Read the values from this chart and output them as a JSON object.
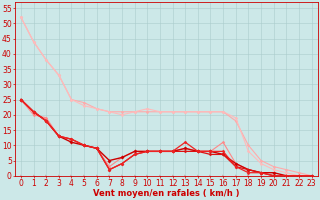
{
  "background_color": "#cce8e8",
  "grid_color": "#aacccc",
  "xlabel": "Vent moyen/en rafales ( km/h )",
  "xlabel_color": "#cc0000",
  "xlabel_fontsize": 6.0,
  "tick_color": "#cc0000",
  "tick_fontsize": 5.5,
  "ylim": [
    0,
    57
  ],
  "xlim": [
    -0.5,
    23.5
  ],
  "yticks": [
    0,
    5,
    10,
    15,
    20,
    25,
    30,
    35,
    40,
    45,
    50,
    55
  ],
  "xticks": [
    0,
    1,
    2,
    3,
    4,
    5,
    6,
    7,
    8,
    9,
    10,
    11,
    12,
    13,
    14,
    15,
    16,
    17,
    18,
    19,
    20,
    21,
    22,
    23
  ],
  "series": [
    {
      "x": [
        0,
        1,
        2,
        3,
        4,
        5,
        6,
        7,
        8,
        9,
        10,
        11,
        12,
        13,
        14,
        15,
        16,
        17,
        18,
        19,
        20,
        21,
        22,
        23
      ],
      "y": [
        52,
        44,
        38,
        33,
        25,
        24,
        22,
        21,
        21,
        21,
        21,
        21,
        21,
        21,
        21,
        21,
        21,
        18,
        10,
        5,
        3,
        2,
        1,
        0
      ],
      "color": "#ffaaaa",
      "linewidth": 0.8,
      "marker": "D",
      "markersize": 1.5
    },
    {
      "x": [
        0,
        1,
        2,
        3,
        4,
        5,
        6,
        7,
        8,
        9,
        10,
        11,
        12,
        13,
        14,
        15,
        16,
        17,
        18,
        19,
        20,
        21,
        22,
        23
      ],
      "y": [
        52,
        44,
        38,
        33,
        25,
        23,
        22,
        21,
        20,
        21,
        22,
        21,
        21,
        21,
        21,
        21,
        21,
        19,
        8,
        4,
        2,
        1,
        0,
        0
      ],
      "color": "#ffbbbb",
      "linewidth": 0.8,
      "marker": "D",
      "markersize": 1.5
    },
    {
      "x": [
        0,
        1,
        2,
        3,
        4,
        5,
        6,
        7,
        8,
        9,
        10,
        11,
        12,
        13,
        14,
        15,
        16,
        17,
        18,
        19,
        20,
        21,
        22,
        23
      ],
      "y": [
        25,
        20,
        19,
        13,
        12,
        10,
        9,
        3,
        6,
        8,
        8,
        8,
        8,
        9,
        8,
        8,
        11,
        4,
        2,
        1,
        0,
        0,
        0,
        0
      ],
      "color": "#ff8888",
      "linewidth": 0.8,
      "marker": "D",
      "markersize": 1.5
    },
    {
      "x": [
        0,
        1,
        2,
        3,
        4,
        5,
        6,
        7,
        8,
        9,
        10,
        11,
        12,
        13,
        14,
        15,
        16,
        17,
        18,
        19,
        20,
        21,
        22,
        23
      ],
      "y": [
        25,
        21,
        18,
        13,
        11,
        10,
        9,
        5,
        6,
        8,
        8,
        8,
        8,
        9,
        8,
        8,
        7,
        4,
        2,
        1,
        1,
        0,
        0,
        0
      ],
      "color": "#cc0000",
      "linewidth": 1.0,
      "marker": "D",
      "markersize": 1.8
    },
    {
      "x": [
        0,
        1,
        2,
        3,
        4,
        5,
        6,
        7,
        8,
        9,
        10,
        11,
        12,
        13,
        14,
        15,
        16,
        17,
        18,
        19,
        20,
        21,
        22,
        23
      ],
      "y": [
        25,
        21,
        18,
        13,
        12,
        10,
        9,
        2,
        4,
        7,
        8,
        8,
        8,
        8,
        8,
        7,
        7,
        3,
        2,
        1,
        0,
        0,
        0,
        0
      ],
      "color": "#dd1111",
      "linewidth": 0.9,
      "marker": "D",
      "markersize": 1.6
    },
    {
      "x": [
        0,
        1,
        2,
        3,
        4,
        5,
        6,
        7,
        8,
        9,
        10,
        11,
        12,
        13,
        14,
        15,
        16,
        17,
        18,
        19,
        20,
        21,
        22,
        23
      ],
      "y": [
        25,
        21,
        18,
        13,
        12,
        10,
        9,
        2,
        4,
        7,
        8,
        8,
        8,
        11,
        8,
        8,
        8,
        3,
        1,
        1,
        0,
        0,
        0,
        0
      ],
      "color": "#ee2222",
      "linewidth": 0.9,
      "marker": "D",
      "markersize": 1.6
    },
    {
      "x": [
        0,
        1,
        2,
        3,
        4,
        5,
        6,
        7,
        8,
        9,
        10,
        11,
        12,
        13,
        14,
        15,
        16,
        17,
        18,
        19,
        20,
        21,
        22,
        23
      ],
      "y": [
        0,
        0,
        0,
        0,
        0,
        0,
        0,
        0,
        0,
        0,
        0,
        0,
        0,
        0,
        0,
        0,
        0,
        0,
        0,
        0,
        0,
        0,
        0,
        0
      ],
      "color": "#cc0000",
      "linewidth": 0.6,
      "marker": "4",
      "markersize": 3.0
    }
  ]
}
